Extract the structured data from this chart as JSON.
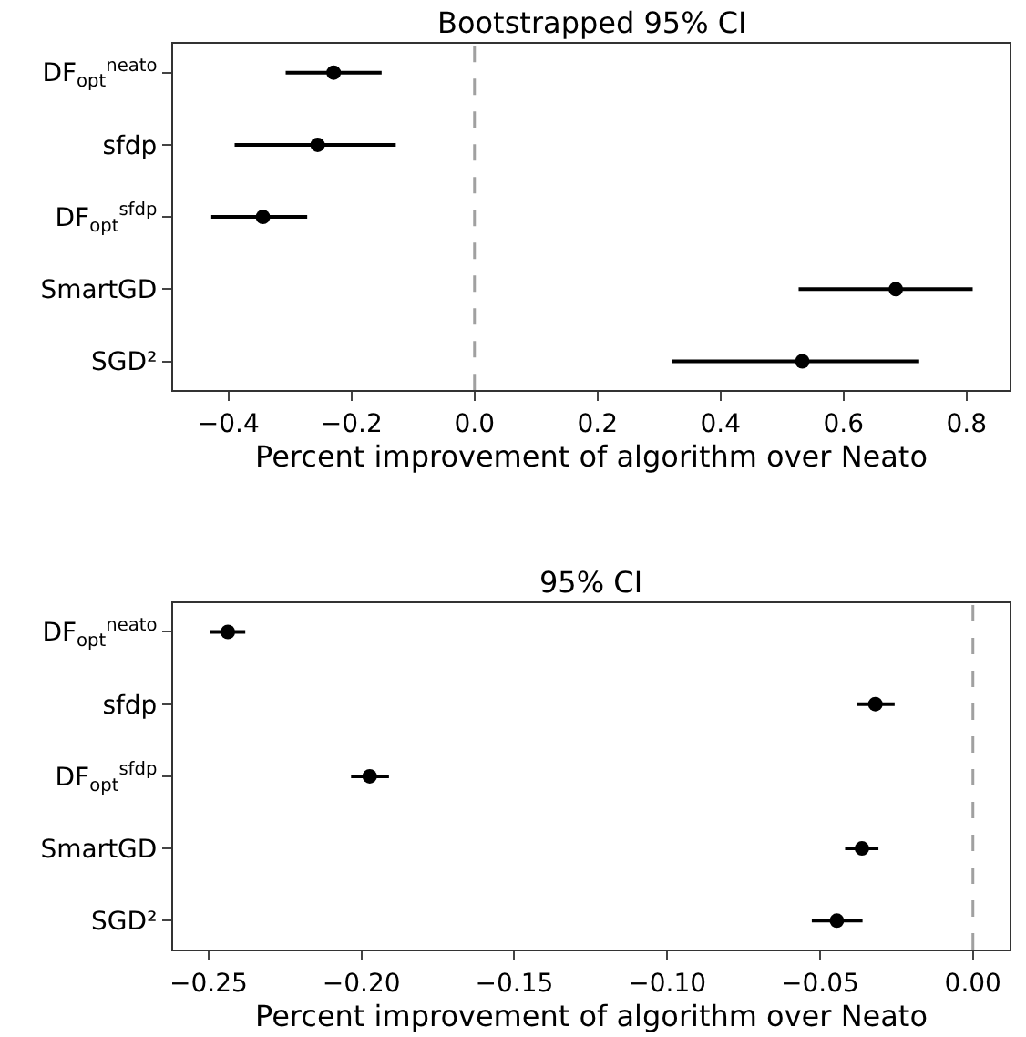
{
  "chart_data": [
    {
      "type": "scatter",
      "orientation": "horizontal",
      "title": "Bootstrapped 95% CI",
      "xlabel": "Percent improvement of algorithm over Neato",
      "categories": [
        "DF$_{opt}$$^{neato}$",
        "sfdp",
        "DF$_{opt}$$^{sfdp}$",
        "SmartGD",
        "SGD²"
      ],
      "series": [
        {
          "color": "#000000",
          "values": [
            -0.229,
            -0.255,
            -0.344,
            0.685,
            0.533
          ],
          "errors": [
            [
              -0.307,
              -0.151
            ],
            [
              -0.39,
              -0.128
            ],
            [
              -0.428,
              -0.272
            ],
            [
              0.527,
              0.81
            ],
            [
              0.321,
              0.723
            ]
          ]
        }
      ],
      "marker": "circle",
      "xlim": [
        -0.49,
        0.87
      ],
      "xticks": [
        {
          "value": -0.4,
          "label": "−0.4"
        },
        {
          "value": -0.2,
          "label": "−0.2"
        },
        "0.0",
        "0.2",
        "0.4",
        "0.6",
        "0.8"
      ],
      "ref_lines": [
        {
          "axis": "x",
          "value": 0,
          "color": "#a0a0a0",
          "line_style": "dashed"
        }
      ],
      "grid": false
    },
    {
      "type": "scatter",
      "orientation": "horizontal",
      "title": "95% CI",
      "xlabel": "Percent improvement of algorithm over Neato",
      "categories": [
        "DF$_{opt}$$^{neato}$",
        "sfdp",
        "DF$_{opt}$$^{sfdp}$",
        "SmartGD",
        "SGD²"
      ],
      "series": [
        {
          "color": "#000000",
          "values": [
            -0.2437,
            -0.0319,
            -0.1973,
            -0.0363,
            -0.0445
          ],
          "errors": [
            [
              -0.2496,
              -0.238
            ],
            [
              -0.0378,
              -0.0256
            ],
            [
              -0.2034,
              -0.191
            ],
            [
              -0.0418,
              -0.0309
            ],
            [
              -0.0527,
              -0.0361
            ]
          ]
        }
      ],
      "marker": "circle",
      "xlim": [
        -0.2616,
        0.012
      ],
      "xticks": [
        {
          "value": -0.25,
          "label": "−0.25"
        },
        {
          "value": -0.2,
          "label": "−0.20"
        },
        {
          "value": -0.15,
          "label": "−0.15"
        },
        {
          "value": -0.1,
          "label": "−0.10"
        },
        {
          "value": -0.05,
          "label": "−0.05"
        },
        {
          "value": 0,
          "label": "0.00"
        }
      ],
      "ref_lines": [
        {
          "axis": "x",
          "value": 0,
          "color": "#a0a0a0",
          "line_style": "dashed"
        }
      ],
      "grid": false
    }
  ]
}
